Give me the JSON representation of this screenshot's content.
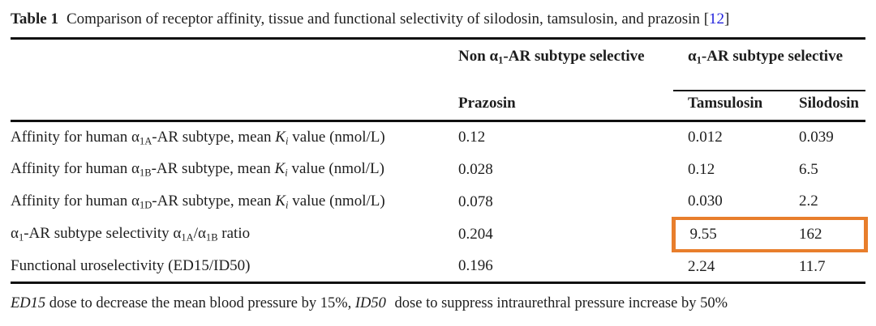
{
  "colors": {
    "highlight_orange": "#e87e2c",
    "citation_blue": "#2323dd",
    "text_color": "#1e1e1e",
    "rule_color": "#111111"
  },
  "caption": {
    "label": "Table 1",
    "text": "Comparison of receptor affinity, tissue and functional selectivity of silodosin, tamsulosin, and prazosin ",
    "citation_open": "[",
    "citation_number": "12",
    "citation_close": "]"
  },
  "table": {
    "group_headers": {
      "non_selective": {
        "pre": "Non α",
        "sub": "1",
        "post": "-AR subtype selective"
      },
      "selective": {
        "pre": "α",
        "sub": "1",
        "post": "-AR subtype selective"
      }
    },
    "column_headers": {
      "prazosin": "Prazosin",
      "tamsulosin": "Tamsulosin",
      "silodosin": "Silodosin"
    },
    "rows": [
      {
        "label": {
          "pre": "Affinity for human α",
          "sub": "1A",
          "mid": "-AR subtype, mean ",
          "k": "K",
          "ksub": "i",
          "post": " value (nmol/L)"
        },
        "values": {
          "prazosin": "0.12",
          "tamsulosin": "0.012",
          "silodosin": "0.039"
        }
      },
      {
        "label": {
          "pre": "Affinity for human α",
          "sub": "1B",
          "mid": "-AR subtype, mean ",
          "k": "K",
          "ksub": "i",
          "post": " value (nmol/L)"
        },
        "values": {
          "prazosin": "0.028",
          "tamsulosin": "0.12",
          "silodosin": "6.5"
        }
      },
      {
        "label": {
          "pre": "Affinity for human α",
          "sub": "1D",
          "mid": "-AR subtype, mean ",
          "k": "K",
          "ksub": "i",
          "post": " value (nmol/L)"
        },
        "values": {
          "prazosin": "0.078",
          "tamsulosin": "0.030",
          "silodosin": "2.2"
        }
      },
      {
        "label": {
          "a": "α",
          "s1": "1",
          "t1": "-AR subtype selectivity α",
          "s2": "1A",
          "t2": "/α",
          "s3": "1B",
          "t3": " ratio"
        },
        "values": {
          "prazosin": "0.204",
          "tamsulosin": "9.55",
          "silodosin": "162"
        },
        "highlighted": true
      },
      {
        "label": {
          "text": "Functional uroselectivity (ED15/ID50)"
        },
        "values": {
          "prazosin": "0.196",
          "tamsulosin": "2.24",
          "silodosin": "11.7"
        }
      }
    ]
  },
  "footnote": {
    "term1": "ED15",
    "text1": " dose to decrease the mean blood pressure by 15%, ",
    "term2": "ID50",
    "text2": " dose to suppress intraurethral pressure increase by 50%"
  }
}
